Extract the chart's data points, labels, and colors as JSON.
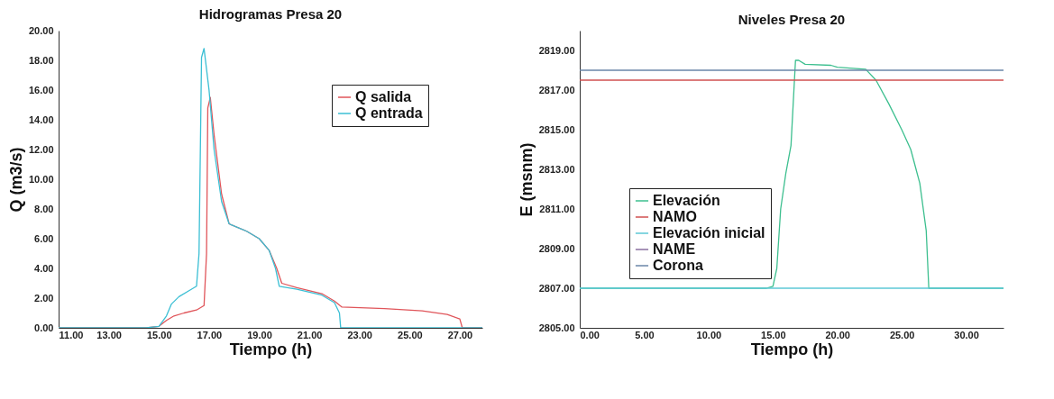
{
  "chart_data": [
    {
      "type": "line",
      "title": "Hidrogramas Presa 20",
      "xlabel": "Tiempo (h)",
      "ylabel": "Q (m3/s)",
      "xlim": [
        11,
        27.9
      ],
      "ylim": [
        0,
        20
      ],
      "xticks": [
        {
          "value": 11,
          "label": "11.00"
        },
        {
          "value": 13,
          "label": "13.00"
        },
        {
          "value": 15,
          "label": "15.00"
        },
        {
          "value": 17,
          "label": "17.00"
        },
        {
          "value": 19,
          "label": "19.00"
        },
        {
          "value": 21,
          "label": "21.00"
        },
        {
          "value": 23,
          "label": "23.00"
        },
        {
          "value": 25,
          "label": "25.00"
        },
        {
          "value": 27,
          "label": "27.00"
        }
      ],
      "yticks": [
        {
          "value": 0,
          "label": "0.00"
        },
        {
          "value": 2,
          "label": "2.00"
        },
        {
          "value": 4,
          "label": "4.00"
        },
        {
          "value": 6,
          "label": "6.00"
        },
        {
          "value": 8,
          "label": "8.00"
        },
        {
          "value": 10,
          "label": "10.00"
        },
        {
          "value": 12,
          "label": "12.00"
        },
        {
          "value": 14,
          "label": "14.00"
        },
        {
          "value": 16,
          "label": "16.00"
        },
        {
          "value": 18,
          "label": "18.00"
        },
        {
          "value": 20,
          "label": "20.00"
        }
      ],
      "legend": "top right",
      "series": [
        {
          "name": "Q salida",
          "color": "#e0555a",
          "x": [
            11,
            14.5,
            15,
            15.3,
            15.6,
            16,
            16.5,
            16.8,
            16.9,
            16.95,
            17.05,
            17.2,
            17.5,
            17.8,
            18.5,
            19,
            19.4,
            19.7,
            19.9,
            20.5,
            21.5,
            22,
            22.3,
            24,
            25.5,
            26.5,
            27,
            27.1,
            27.9
          ],
          "values": [
            0,
            0,
            0.1,
            0.5,
            0.8,
            1.0,
            1.2,
            1.5,
            5,
            14.8,
            15.5,
            13,
            9,
            7,
            6.5,
            6,
            5.2,
            4,
            3,
            2.7,
            2.3,
            1.8,
            1.4,
            1.3,
            1.15,
            0.9,
            0.6,
            0,
            0
          ]
        },
        {
          "name": "Q entrada",
          "color": "#3bbfd4",
          "x": [
            11,
            14.5,
            15,
            15.3,
            15.5,
            15.8,
            16.2,
            16.5,
            16.6,
            16.7,
            16.8,
            17,
            17.2,
            17.5,
            17.8,
            18.5,
            19,
            19.4,
            19.65,
            19.8,
            20.5,
            21.5,
            22,
            22.2,
            22.25,
            27.9
          ],
          "values": [
            0,
            0,
            0.1,
            0.8,
            1.6,
            2.1,
            2.5,
            2.8,
            5,
            18.2,
            18.8,
            16,
            12,
            8.5,
            7,
            6.5,
            6,
            5.2,
            4,
            2.8,
            2.6,
            2.2,
            1.7,
            1,
            0,
            0
          ]
        }
      ]
    },
    {
      "type": "line",
      "title": "Niveles Presa 20",
      "xlabel": "Tiempo (h)",
      "ylabel": "E (msnm)",
      "xlim": [
        0,
        32.9
      ],
      "ylim": [
        2805,
        2820
      ],
      "xticks": [
        {
          "value": 0,
          "label": "0.00"
        },
        {
          "value": 5,
          "label": "5.00"
        },
        {
          "value": 10,
          "label": "10.00"
        },
        {
          "value": 15,
          "label": "15.00"
        },
        {
          "value": 20,
          "label": "20.00"
        },
        {
          "value": 25,
          "label": "25.00"
        },
        {
          "value": 30,
          "label": "30.00"
        }
      ],
      "yticks": [
        {
          "value": 2805,
          "label": "2805.00"
        },
        {
          "value": 2807,
          "label": "2807.00"
        },
        {
          "value": 2809,
          "label": "2809.00"
        },
        {
          "value": 2811,
          "label": "2811.00"
        },
        {
          "value": 2813,
          "label": "2813.00"
        },
        {
          "value": 2815,
          "label": "2815.00"
        },
        {
          "value": 2817,
          "label": "2817.00"
        },
        {
          "value": 2819,
          "label": "2819.00"
        }
      ],
      "legend": "bottom left",
      "series": [
        {
          "name": "Elevación",
          "color": "#3dbf8f",
          "x": [
            0,
            14.5,
            15,
            15.3,
            15.6,
            16,
            16.4,
            16.75,
            17,
            17.5,
            19.5,
            20,
            22.2,
            23,
            24,
            25,
            25.7,
            26.4,
            26.9,
            27.1,
            32.9
          ],
          "values": [
            2807,
            2807,
            2807.1,
            2808,
            2811,
            2812.8,
            2814.2,
            2818.5,
            2818.5,
            2818.3,
            2818.25,
            2818.15,
            2818.05,
            2817.5,
            2816.3,
            2815,
            2814,
            2812.3,
            2809.9,
            2807,
            2807
          ]
        },
        {
          "name": "NAMO",
          "color": "#d05050",
          "x": [
            0,
            32.9
          ],
          "values": [
            2817.5,
            2817.5
          ]
        },
        {
          "name": "Elevación inicial",
          "color": "#5cc8d6",
          "x": [
            0,
            32.9
          ],
          "values": [
            2807,
            2807
          ]
        },
        {
          "name": "NAME",
          "color": "#8a6fa0"
        },
        {
          "name": "Corona",
          "color": "#6a86a8",
          "x": [
            0,
            32.9
          ],
          "values": [
            2818,
            2818
          ]
        }
      ]
    }
  ]
}
